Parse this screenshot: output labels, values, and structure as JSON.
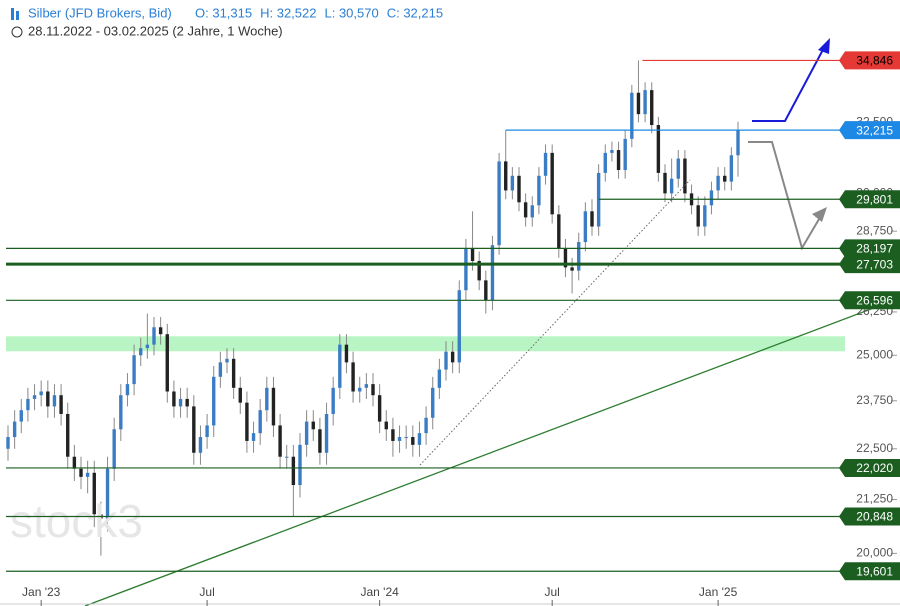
{
  "chart_data": {
    "type": "candlestick",
    "title": "Silber (JFD Brokers, Bid)",
    "ohlc_texts": [
      "O: 31,315",
      "H: 32,522",
      "L: 30,570",
      "C: 32,215"
    ],
    "subtitle": "28.11.2022 - 03.02.2025 (2 Jahre, 1 Woche)",
    "watermark": "stock3",
    "log_scale": true,
    "ylim": [
      19300,
      37300
    ],
    "xlim": [
      0,
      110
    ],
    "yticks": [
      {
        "value": 20000,
        "label": "20,000"
      },
      {
        "value": 21250,
        "label": "21,250"
      },
      {
        "value": 22500,
        "label": "22,500"
      },
      {
        "value": 23750,
        "label": "23,750"
      },
      {
        "value": 25000,
        "label": "25,000"
      },
      {
        "value": 26250,
        "label": "26,250"
      },
      {
        "value": 28750,
        "label": "28,750"
      },
      {
        "value": 30000,
        "label": "30,000"
      },
      {
        "value": 32500,
        "label": "32,500"
      }
    ],
    "xticks": [
      {
        "value": 5,
        "label": "Jan '23"
      },
      {
        "value": 30,
        "label": "Jul"
      },
      {
        "value": 56,
        "label": "Jan '24"
      },
      {
        "value": 82,
        "label": "Jul"
      },
      {
        "value": 107,
        "label": "Jan '25"
      }
    ],
    "up_color": "#3b7dc4",
    "down_color": "#222222",
    "open": [
      22500,
      22800,
      23200,
      23500,
      23800,
      23900,
      24000,
      23600,
      23900,
      23400,
      22300,
      22000,
      21800,
      21900,
      20900,
      20800,
      22000,
      23000,
      23900,
      24200,
      25000,
      25200,
      25300,
      25800,
      25600,
      24000,
      23600,
      23800,
      23600,
      22400,
      22800,
      23100,
      24400,
      24800,
      24900,
      24100,
      23700,
      22700,
      22900,
      23500,
      24100,
      23100,
      22300,
      22300,
      21600,
      22600,
      23200,
      23000,
      22400,
      23400,
      24100,
      25300,
      24800,
      24000,
      24100,
      24200,
      23900,
      23200,
      23000,
      22700,
      22800,
      22800,
      22600,
      22900,
      23300,
      24100,
      24600,
      25100,
      24800,
      26900,
      28200,
      27800,
      27200,
      26600,
      28300,
      31100,
      30100,
      30600,
      29700,
      29200,
      29600,
      30600,
      31400,
      29300,
      28200,
      27600,
      27500,
      28400,
      29400,
      28900,
      30700,
      31400,
      31500,
      30800,
      31900,
      33600,
      32800,
      33700,
      32400,
      30700,
      30000,
      30500,
      31200,
      30000,
      29600,
      28900,
      29600,
      30100,
      30600,
      30400,
      31315
    ],
    "high": [
      23100,
      23500,
      23800,
      24100,
      24200,
      24300,
      24300,
      24200,
      24200,
      23700,
      22600,
      22300,
      22200,
      22200,
      21200,
      22300,
      23300,
      24200,
      24500,
      25300,
      25500,
      26200,
      26100,
      26100,
      25900,
      24300,
      24100,
      24100,
      23900,
      23100,
      23400,
      24700,
      25100,
      25200,
      25200,
      24400,
      24000,
      23200,
      23800,
      24400,
      24400,
      23400,
      22600,
      22600,
      22900,
      23500,
      23500,
      23300,
      23700,
      24400,
      25600,
      25600,
      25100,
      24400,
      24500,
      24500,
      24200,
      23500,
      23300,
      23100,
      23100,
      23100,
      23200,
      23600,
      24400,
      24900,
      25400,
      25400,
      27200,
      28500,
      29400,
      28100,
      27500,
      28600,
      31400,
      32215,
      30900,
      30900,
      30000,
      29900,
      30900,
      31700,
      31700,
      29600,
      28500,
      27900,
      28700,
      29700,
      29801,
      31000,
      31700,
      31800,
      31800,
      32200,
      33900,
      34846,
      34000,
      34000,
      32700,
      31000,
      31200,
      31500,
      31500,
      30300,
      29900,
      29900,
      30400,
      30900,
      30900,
      31600,
      32522
    ],
    "low": [
      22200,
      22500,
      22900,
      23200,
      23500,
      23600,
      23300,
      23300,
      23100,
      22000,
      21700,
      21500,
      21400,
      20600,
      19950,
      20500,
      21700,
      22700,
      23600,
      23900,
      24700,
      24900,
      25000,
      25300,
      23700,
      23300,
      23300,
      23300,
      22100,
      22100,
      22500,
      22800,
      24100,
      24500,
      23800,
      23400,
      22400,
      22400,
      22600,
      23200,
      22800,
      22000,
      22000,
      20848,
      21300,
      22300,
      22700,
      22100,
      22100,
      23100,
      23800,
      24500,
      23700,
      23700,
      23800,
      23600,
      22900,
      22700,
      22300,
      22400,
      22500,
      22300,
      22300,
      22600,
      23000,
      23800,
      24300,
      24500,
      24500,
      26600,
      27500,
      26900,
      26200,
      26300,
      28000,
      29800,
      29800,
      29400,
      28900,
      28900,
      29300,
      30300,
      29000,
      27900,
      27300,
      26800,
      27200,
      28100,
      28600,
      28600,
      30400,
      31100,
      30500,
      30500,
      31600,
      32500,
      32500,
      32100,
      30400,
      29700,
      29700,
      30200,
      29700,
      29300,
      28600,
      28600,
      29300,
      29800,
      30100,
      30100,
      30570
    ],
    "close": [
      22800,
      23200,
      23500,
      23800,
      23900,
      24000,
      23600,
      23900,
      23400,
      22300,
      22000,
      21800,
      21900,
      20900,
      20800,
      22000,
      23000,
      23900,
      24200,
      25000,
      25200,
      25300,
      25800,
      25600,
      24000,
      23600,
      23800,
      23600,
      22400,
      22800,
      23100,
      24400,
      24800,
      24900,
      24100,
      23700,
      22700,
      22900,
      23500,
      24100,
      23100,
      22300,
      22300,
      21600,
      22600,
      23200,
      23000,
      22400,
      23400,
      24100,
      25300,
      24800,
      24000,
      24100,
      24200,
      23900,
      23200,
      23000,
      22700,
      22800,
      22800,
      22600,
      22900,
      23300,
      24100,
      24600,
      25100,
      24800,
      26900,
      28200,
      27800,
      27200,
      26600,
      28300,
      31100,
      30100,
      30600,
      29700,
      29200,
      29600,
      30600,
      31400,
      29300,
      28200,
      27600,
      27500,
      28400,
      29400,
      28900,
      30700,
      31400,
      31500,
      30800,
      31900,
      33600,
      32800,
      33700,
      32400,
      30700,
      30000,
      30500,
      31200,
      30000,
      29600,
      28900,
      29600,
      30100,
      30600,
      30400,
      31315,
      32215
    ],
    "levels": {
      "values": [
        34846,
        32215,
        29801,
        28197,
        27703,
        26596,
        22020,
        20848,
        19601
      ],
      "value_labels": [
        "34,846",
        "32,215",
        "29,801",
        "28,197",
        "27,703",
        "26,596",
        "22,020",
        "20,848",
        "19,601"
      ],
      "colors": [
        "#e53935",
        "#1e88e5",
        "#1b5e20",
        "#1b5e20",
        "#1b5e20",
        "#1b5e20",
        "#1b5e20",
        "#1b5e20",
        "#1b5e20"
      ]
    },
    "zone": [
      25113,
      25540
    ],
    "zone_color": "#b9f5c4"
  }
}
